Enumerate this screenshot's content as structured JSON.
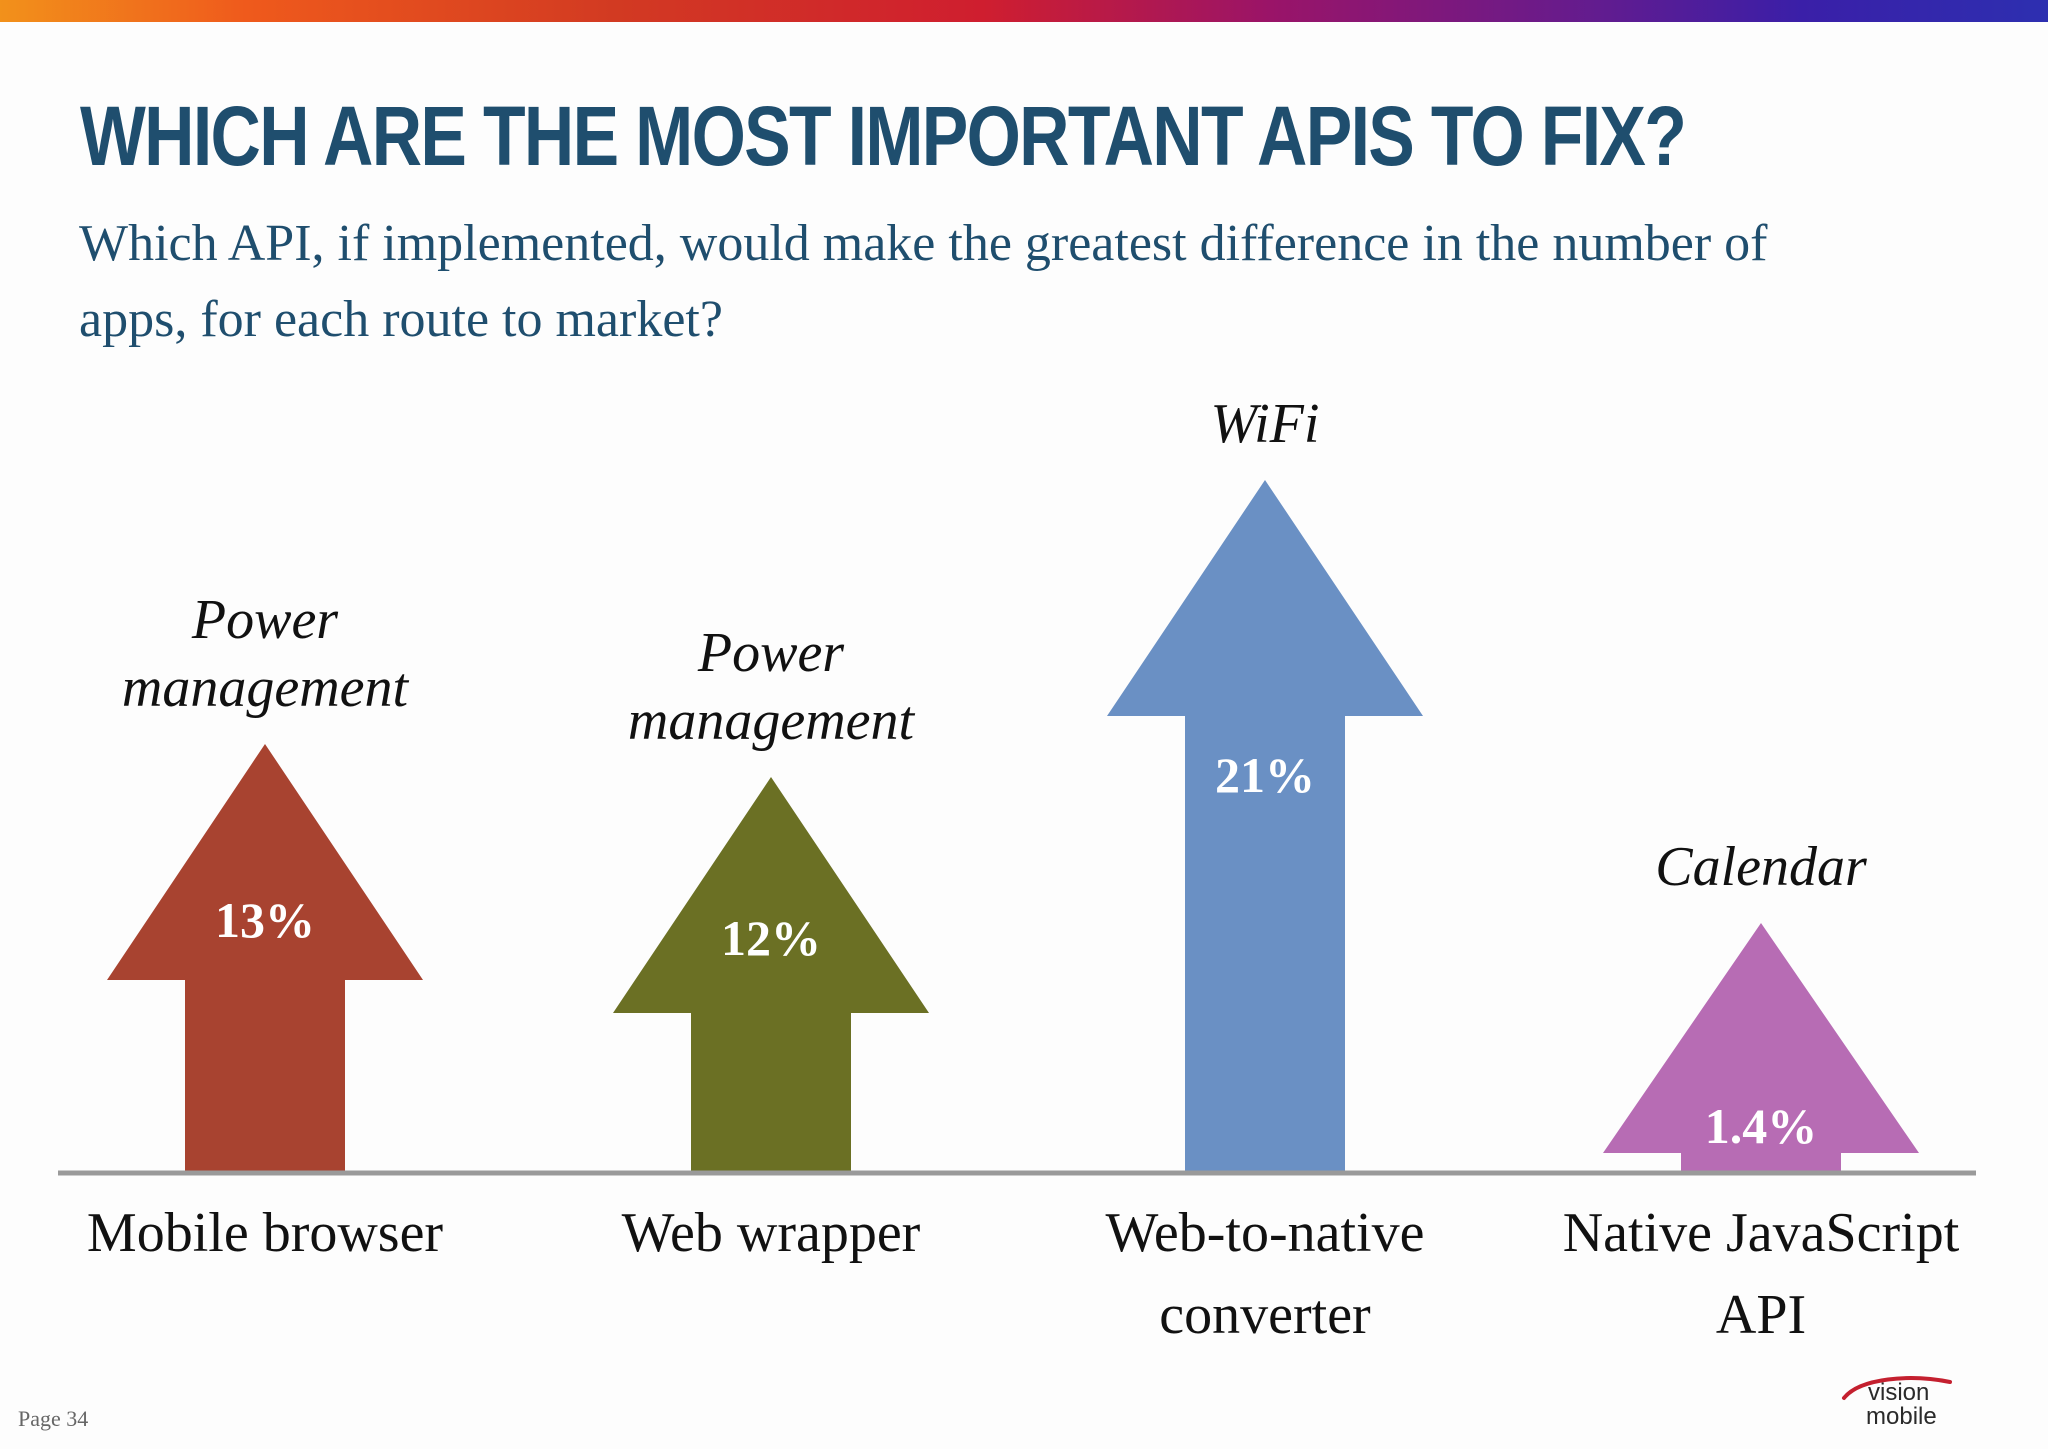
{
  "header": {
    "title": "WHICH ARE THE MOST IMPORTANT APIS TO FIX?",
    "subtitle": "Which API, if implemented, would make the greatest difference in the number of apps, for each route to market?"
  },
  "footer": {
    "page_label": "Page 34"
  },
  "logo": {
    "line1": "vision",
    "line2": "mobile"
  },
  "chart_data": {
    "type": "bar",
    "title": "",
    "xlabel": "",
    "ylabel": "",
    "categories": [
      "Mobile browser",
      "Web wrapper",
      "Web-to-native converter",
      "Native JavaScript API"
    ],
    "values": [
      13,
      12,
      21,
      1.4
    ],
    "value_labels": [
      "13%",
      "12%",
      "21%",
      "1.4%"
    ],
    "annotations": [
      "Power management",
      "Power management",
      "WiFi",
      "Calendar"
    ],
    "colors": [
      "#a84330",
      "#6b7024",
      "#6a90c4",
      "#b76cb4"
    ],
    "ylim": [
      0,
      21
    ],
    "grid": false
  }
}
